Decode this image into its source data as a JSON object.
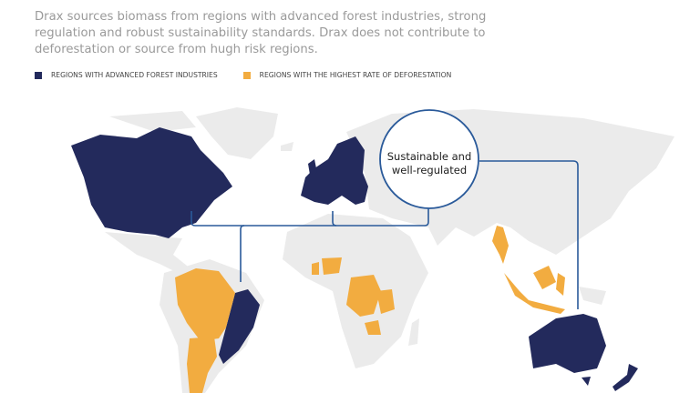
{
  "intro_text": "Drax sources biomass from regions with advanced forest industries, strong regulation and robust sustainability standards. Drax does not contribute to deforestation or source from hugh risk regions.",
  "legend": [
    {
      "label": "REGIONS WITH ADVANCED FOREST INDUSTRIES",
      "color": "#232a5c"
    },
    {
      "label": "REGIONS WITH THE HIGHEST RATE OF DEFORESTATION",
      "color": "#f2ac40"
    }
  ],
  "callout": {
    "line1": "Sustainable and",
    "line2": "well-regulated"
  },
  "colors": {
    "advanced": "#232a5c",
    "deforestation": "#f2ac40",
    "land": "#ebebeb",
    "connector": "#2a5a9a"
  }
}
